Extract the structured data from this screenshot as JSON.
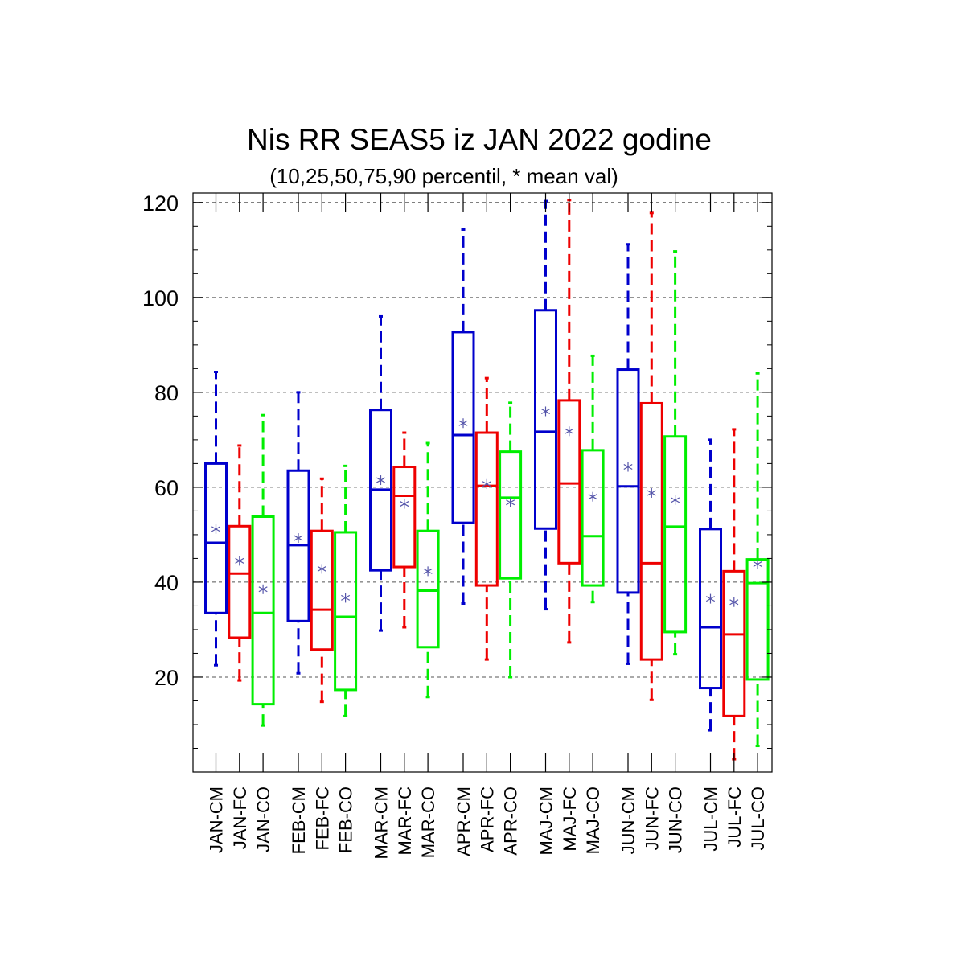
{
  "chart_data": {
    "type": "boxplot",
    "title": "Nis RR SEAS5 iz JAN 2022 godine",
    "subtitle": "(10,25,50,75,90 percentil, * mean val)",
    "xlabel": "",
    "ylabel": "",
    "ylim": [
      0,
      122
    ],
    "yticks": [
      20,
      40,
      60,
      80,
      100,
      120
    ],
    "yticks_display": [
      "20",
      "40",
      "60",
      "80",
      "100",
      "120"
    ],
    "grid": true,
    "legend": "none",
    "colors": {
      "CM": "#0000cc",
      "FC": "#ee0000",
      "CO": "#00ee00",
      "mean_marker": "#5555aa",
      "grid": "#555555"
    },
    "boxes": [
      {
        "label": "JAN-CM",
        "series": "CM",
        "p10": 22.5,
        "p25": 33.5,
        "p50": 48.3,
        "p75": 65.0,
        "p90": 84.3,
        "mean": 51.2
      },
      {
        "label": "JAN-FC",
        "series": "FC",
        "p10": 19.3,
        "p25": 28.3,
        "p50": 41.8,
        "p75": 51.8,
        "p90": 68.8,
        "mean": 44.5
      },
      {
        "label": "JAN-CO",
        "series": "CO",
        "p10": 9.8,
        "p25": 14.3,
        "p50": 33.5,
        "p75": 53.8,
        "p90": 75.2,
        "mean": 38.5
      },
      {
        "label": "FEB-CM",
        "series": "CM",
        "p10": 20.8,
        "p25": 31.8,
        "p50": 47.8,
        "p75": 63.5,
        "p90": 80.0,
        "mean": 49.3
      },
      {
        "label": "FEB-FC",
        "series": "FC",
        "p10": 14.8,
        "p25": 25.8,
        "p50": 34.2,
        "p75": 50.8,
        "p90": 61.8,
        "mean": 42.8
      },
      {
        "label": "FEB-CO",
        "series": "CO",
        "p10": 11.8,
        "p25": 17.3,
        "p50": 32.7,
        "p75": 50.5,
        "p90": 64.5,
        "mean": 36.7
      },
      {
        "label": "MAR-CM",
        "series": "CM",
        "p10": 29.8,
        "p25": 42.5,
        "p50": 59.5,
        "p75": 76.3,
        "p90": 96.0,
        "mean": 61.5
      },
      {
        "label": "MAR-FC",
        "series": "FC",
        "p10": 30.5,
        "p25": 43.2,
        "p50": 58.2,
        "p75": 64.3,
        "p90": 71.5,
        "mean": 56.5
      },
      {
        "label": "MAR-CO",
        "series": "CO",
        "p10": 15.8,
        "p25": 26.3,
        "p50": 38.2,
        "p75": 50.8,
        "p90": 69.3,
        "mean": 42.3
      },
      {
        "label": "APR-CM",
        "series": "CM",
        "p10": 35.5,
        "p25": 52.5,
        "p50": 71.0,
        "p75": 92.7,
        "p90": 114.3,
        "mean": 73.5
      },
      {
        "label": "APR-FC",
        "series": "FC",
        "p10": 23.7,
        "p25": 39.3,
        "p50": 60.3,
        "p75": 71.5,
        "p90": 83.0,
        "mean": 60.7
      },
      {
        "label": "APR-CO",
        "series": "CO",
        "p10": 20.0,
        "p25": 40.8,
        "p50": 57.8,
        "p75": 67.5,
        "p90": 77.8,
        "mean": 56.8
      },
      {
        "label": "MAJ-CM",
        "series": "CM",
        "p10": 34.3,
        "p25": 51.3,
        "p50": 71.7,
        "p75": 97.3,
        "p90": 120.3,
        "mean": 76.0
      },
      {
        "label": "MAJ-FC",
        "series": "FC",
        "p10": 27.3,
        "p25": 44.0,
        "p50": 60.8,
        "p75": 78.3,
        "p90": 120.5,
        "mean": 71.8
      },
      {
        "label": "MAJ-CO",
        "series": "CO",
        "p10": 35.8,
        "p25": 39.3,
        "p50": 49.7,
        "p75": 67.8,
        "p90": 87.7,
        "mean": 58.0
      },
      {
        "label": "JUN-CM",
        "series": "CM",
        "p10": 22.8,
        "p25": 37.8,
        "p50": 60.2,
        "p75": 84.8,
        "p90": 111.2,
        "mean": 64.3
      },
      {
        "label": "JUN-FC",
        "series": "FC",
        "p10": 15.2,
        "p25": 23.7,
        "p50": 44.0,
        "p75": 77.7,
        "p90": 117.8,
        "mean": 58.8
      },
      {
        "label": "JUN-CO",
        "series": "CO",
        "p10": 24.8,
        "p25": 29.5,
        "p50": 51.7,
        "p75": 70.7,
        "p90": 109.7,
        "mean": 57.3
      },
      {
        "label": "JUL-CM",
        "series": "CM",
        "p10": 8.8,
        "p25": 17.7,
        "p50": 30.5,
        "p75": 51.2,
        "p90": 70.0,
        "mean": 36.5
      },
      {
        "label": "JUL-FC",
        "series": "FC",
        "p10": 2.7,
        "p25": 11.8,
        "p50": 29.0,
        "p75": 42.3,
        "p90": 72.2,
        "mean": 35.8
      },
      {
        "label": "JUL-CO",
        "series": "CO",
        "p10": 5.5,
        "p25": 19.5,
        "p50": 39.8,
        "p75": 44.8,
        "p90": 84.0,
        "mean": 43.8
      }
    ]
  }
}
